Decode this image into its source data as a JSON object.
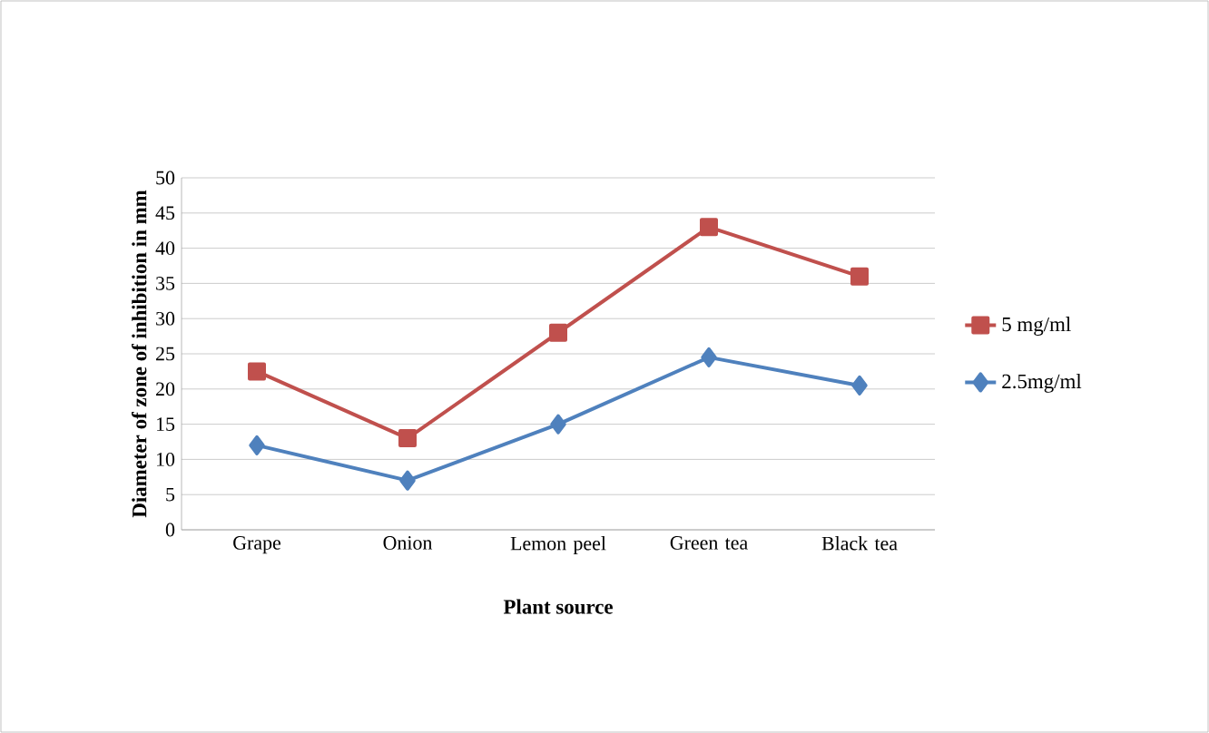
{
  "chart_data": {
    "type": "line",
    "xlabel": "Plant source",
    "ylabel": "Diameter of zone of inhibition in mm",
    "categories": [
      "Grape",
      "Onion",
      "Lemon peel",
      "Green tea",
      "Black tea"
    ],
    "series": [
      {
        "name": "5 mg/ml",
        "color": "#c0504d",
        "marker": "square",
        "values": [
          22.5,
          13,
          28,
          43,
          36
        ]
      },
      {
        "name": "2.5mg/ml",
        "color": "#4f81bd",
        "marker": "diamond",
        "values": [
          12,
          7,
          15,
          24.5,
          20.5
        ]
      }
    ],
    "ylim": [
      0,
      50
    ],
    "yticks": [
      0,
      5,
      10,
      15,
      20,
      25,
      30,
      35,
      40,
      45,
      50
    ],
    "grid": "y",
    "legend": "right",
    "line_style": "solid"
  }
}
